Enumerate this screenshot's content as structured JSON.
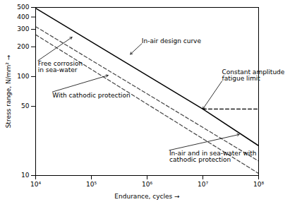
{
  "chart_data": {
    "type": "line",
    "log": true,
    "grid": false,
    "xlabel": "Endurance, cycles",
    "ylabel": "Stress range, N/mm²",
    "xlim": [
      10000,
      100000000
    ],
    "ylim": [
      10,
      500
    ],
    "xticks": [
      {
        "value": 10000,
        "label": "10⁴"
      },
      {
        "value": 100000,
        "label": "10⁵"
      },
      {
        "value": 1000000,
        "label": "10⁶"
      },
      {
        "value": 10000000,
        "label": "10⁷"
      },
      {
        "value": 100000000,
        "label": "10⁸"
      }
    ],
    "yticks": [
      10,
      50,
      100,
      200,
      300,
      400,
      500
    ],
    "series": [
      {
        "x": [
          10000,
          10000000
        ],
        "values": [
          490,
          47
        ],
        "color": "black",
        "line_style": "solid"
      },
      {
        "x": [
          10000000,
          100000000
        ],
        "values": [
          47,
          47
        ],
        "color": "black",
        "line_style": "dashed"
      },
      {
        "x": [
          10000000,
          100000000
        ],
        "values": [
          47,
          20
        ],
        "color": "black",
        "line_style": "solid"
      },
      {
        "x": [
          10000,
          100000000
        ],
        "values": [
          320,
          14
        ],
        "color": "#444444",
        "line_style": "dashed"
      },
      {
        "x": [
          10000,
          100000000
        ],
        "values": [
          265,
          10.5
        ],
        "color": "#444444",
        "line_style": "dashed"
      }
    ],
    "annotations": [
      {
        "text": "In-air design curve",
        "x": 500000,
        "y": 168,
        "text_x": 800000,
        "text_y": 215
      },
      {
        "text": "Free corrosion\nin sea-water",
        "x": 45000,
        "y": 250,
        "text_x": 11000,
        "text_y": 145
      },
      {
        "text": "With cathodic protection",
        "x": 200000,
        "y": 103,
        "text_x": 20000,
        "text_y": 70
      },
      {
        "text": "Constant amplitude\nfatigue limit",
        "x": 10000000,
        "y": 47,
        "text_x": 22000000,
        "text_y": 90
      },
      {
        "text": "In-air and in sea-water with\ncathodic protection",
        "x": 45000000,
        "y": 26,
        "text_x": 2500000,
        "text_y": 18
      }
    ]
  }
}
